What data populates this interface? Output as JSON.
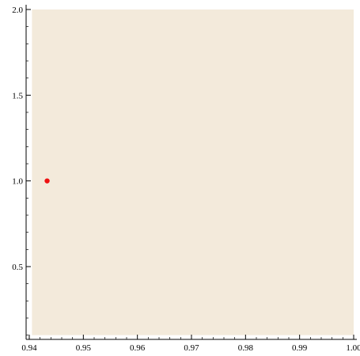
{
  "chart_data": {
    "type": "scatter",
    "title": "",
    "xlabel": "",
    "ylabel": "",
    "xlim": [
      0.94,
      1.0
    ],
    "ylim": [
      0.0,
      2.0
    ],
    "region": {
      "x": [
        0.9405,
        1.0
      ],
      "y": [
        0.1,
        2.0
      ]
    },
    "x_ticks": [
      {
        "value": 0.94,
        "label": "0.94"
      },
      {
        "value": 0.95,
        "label": "0.95"
      },
      {
        "value": 0.96,
        "label": "0.96"
      },
      {
        "value": 0.97,
        "label": "0.97"
      },
      {
        "value": 0.98,
        "label": "0.98"
      },
      {
        "value": 0.99,
        "label": "0.99"
      },
      {
        "value": 1.0,
        "label": "1.00"
      }
    ],
    "y_ticks": [
      {
        "value": 0.5,
        "label": "0.5"
      },
      {
        "value": 1.0,
        "label": "1.0"
      },
      {
        "value": 1.5,
        "label": "1.5"
      },
      {
        "value": 2.0,
        "label": "2.0"
      }
    ],
    "series": [
      {
        "points": [
          {
            "x": 0.9433,
            "y": 1.0
          }
        ]
      }
    ],
    "colors": {
      "region_fill": "#f3eadb",
      "point": "#ee1111",
      "axis": "#000000"
    },
    "grid": false,
    "legend": "none"
  }
}
